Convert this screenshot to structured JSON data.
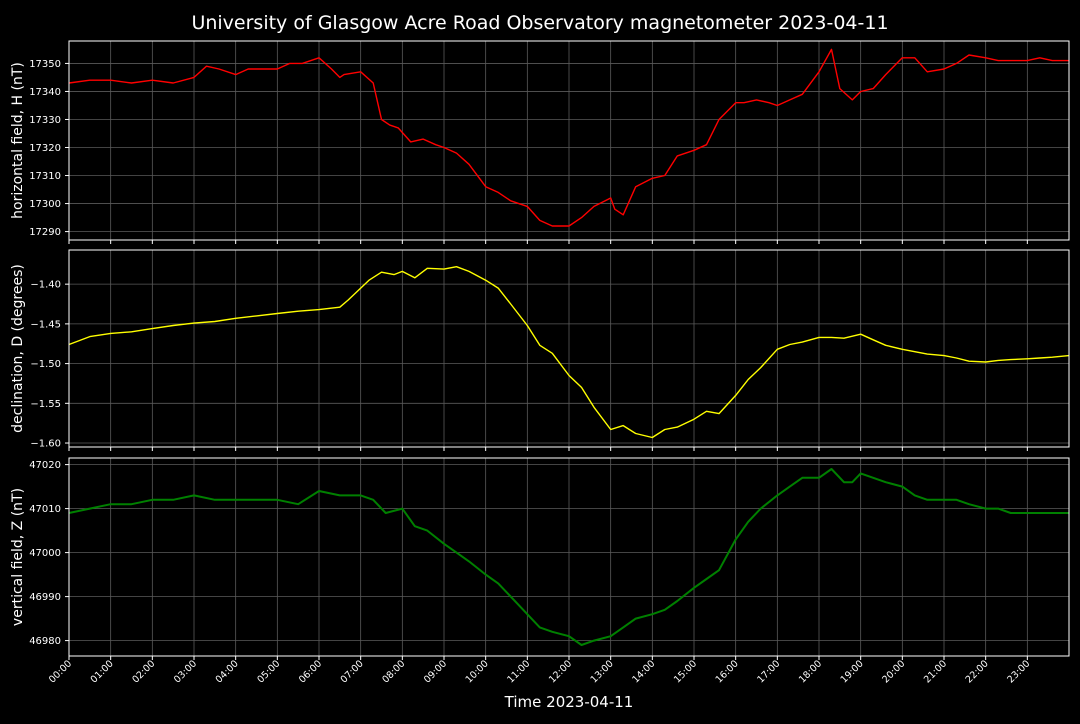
{
  "chart_data": {
    "type": "line",
    "title": "University of Glasgow Acre Road Observatory magnetometer 2023-04-11",
    "xlabel": "Time 2023-04-11",
    "x_unit": "hours",
    "x_tick_labels": [
      "00:00",
      "01:00",
      "02:00",
      "03:00",
      "04:00",
      "05:00",
      "06:00",
      "07:00",
      "08:00",
      "09:00",
      "10:00",
      "11:00",
      "12:00",
      "13:00",
      "14:00",
      "15:00",
      "16:00",
      "17:00",
      "18:00",
      "19:00",
      "20:00",
      "21:00",
      "22:00",
      "23:00"
    ],
    "xlim": [
      0,
      24
    ],
    "grid": true,
    "background": "#000000",
    "panels": [
      {
        "ylabel": "horizontal field, H (nT)",
        "color": "#ff0000",
        "ylim": [
          17287,
          17358
        ],
        "yticks": [
          17290,
          17300,
          17310,
          17320,
          17330,
          17340,
          17350
        ],
        "ytick_labels": [
          "17290",
          "17300",
          "17310",
          "17320",
          "17330",
          "17340",
          "17350"
        ],
        "x": [
          0,
          0.5,
          1,
          1.5,
          2,
          2.5,
          3,
          3.3,
          3.6,
          4,
          4.3,
          4.6,
          5,
          5.3,
          5.6,
          6,
          6.3,
          6.5,
          6.6,
          7,
          7.3,
          7.5,
          7.7,
          7.9,
          8.2,
          8.5,
          8.8,
          9,
          9.3,
          9.6,
          10,
          10.3,
          10.6,
          11,
          11.3,
          11.6,
          12,
          12.3,
          12.6,
          13,
          13.1,
          13.3,
          13.6,
          14,
          14.3,
          14.6,
          15,
          15.3,
          15.6,
          16,
          16.2,
          16.5,
          16.8,
          17,
          17.3,
          17.6,
          18,
          18.3,
          18.5,
          18.8,
          19,
          19.3,
          19.6,
          20,
          20.3,
          20.6,
          21,
          21.3,
          21.6,
          22,
          22.3,
          22.6,
          23,
          23.3,
          23.6,
          24
        ],
        "y": [
          17343,
          17344,
          17344,
          17343,
          17344,
          17343,
          17345,
          17349,
          17348,
          17346,
          17348,
          17348,
          17348,
          17350,
          17350,
          17352,
          17348,
          17345,
          17346,
          17347,
          17343,
          17330,
          17328,
          17327,
          17322,
          17323,
          17321,
          17320,
          17318,
          17314,
          17306,
          17304,
          17301,
          17299,
          17294,
          17292,
          17292,
          17295,
          17299,
          17302,
          17298,
          17296,
          17306,
          17309,
          17310,
          17317,
          17319,
          17321,
          17330,
          17336,
          17336,
          17337,
          17336,
          17335,
          17337,
          17339,
          17347,
          17355,
          17341,
          17337,
          17340,
          17341,
          17346,
          17352,
          17352,
          17347,
          17348,
          17350,
          17353,
          17352,
          17351,
          17351,
          17351,
          17352,
          17351,
          17351
        ]
      },
      {
        "ylabel": "declination, D (degrees)",
        "color": "#ffff00",
        "ylim": [
          -1.605,
          -1.357
        ],
        "yticks": [
          -1.6,
          -1.55,
          -1.5,
          -1.45,
          -1.4
        ],
        "ytick_labels": [
          "−1.60",
          "−1.55",
          "−1.50",
          "−1.45",
          "−1.40"
        ],
        "x": [
          0,
          0.5,
          1,
          1.5,
          2,
          2.5,
          3,
          3.5,
          4,
          4.5,
          5,
          5.5,
          6,
          6.5,
          6.7,
          7,
          7.2,
          7.5,
          7.8,
          8,
          8.3,
          8.6,
          9,
          9.3,
          9.6,
          10,
          10.3,
          10.6,
          11,
          11.3,
          11.6,
          12,
          12.3,
          12.6,
          13,
          13.3,
          13.6,
          14,
          14.3,
          14.6,
          15,
          15.3,
          15.6,
          16,
          16.3,
          16.6,
          17,
          17.3,
          17.6,
          18,
          18.3,
          18.6,
          19,
          19.3,
          19.6,
          20,
          20.3,
          20.6,
          21,
          21.3,
          21.6,
          22,
          22.3,
          22.6,
          23,
          23.3,
          23.6,
          24
        ],
        "y": [
          -1.476,
          -1.466,
          -1.462,
          -1.46,
          -1.456,
          -1.452,
          -1.449,
          -1.447,
          -1.443,
          -1.44,
          -1.437,
          -1.434,
          -1.432,
          -1.429,
          -1.42,
          -1.405,
          -1.395,
          -1.385,
          -1.388,
          -1.384,
          -1.392,
          -1.38,
          -1.381,
          -1.378,
          -1.384,
          -1.395,
          -1.405,
          -1.425,
          -1.452,
          -1.477,
          -1.487,
          -1.515,
          -1.53,
          -1.555,
          -1.583,
          -1.578,
          -1.588,
          -1.593,
          -1.583,
          -1.58,
          -1.57,
          -1.56,
          -1.563,
          -1.54,
          -1.52,
          -1.505,
          -1.482,
          -1.476,
          -1.473,
          -1.467,
          -1.467,
          -1.468,
          -1.463,
          -1.47,
          -1.477,
          -1.482,
          -1.485,
          -1.488,
          -1.49,
          -1.493,
          -1.497,
          -1.498,
          -1.496,
          -1.495,
          -1.494,
          -1.493,
          -1.492,
          -1.49
        ]
      },
      {
        "ylabel": "vertical field, Z (nT)",
        "color": "#008000",
        "ylim": [
          46976.5,
          47021.5
        ],
        "yticks": [
          46980,
          46990,
          47000,
          47010,
          47020
        ],
        "ytick_labels": [
          "46980",
          "46990",
          "47000",
          "47010",
          "47020"
        ],
        "x": [
          0,
          0.5,
          1,
          1.5,
          2,
          2.5,
          3,
          3.5,
          4,
          4.5,
          5,
          5.5,
          6,
          6.5,
          7,
          7.3,
          7.6,
          8,
          8.3,
          8.6,
          9,
          9.3,
          9.6,
          10,
          10.3,
          10.6,
          11,
          11.3,
          11.6,
          12,
          12.3,
          12.6,
          13,
          13.3,
          13.6,
          14,
          14.3,
          14.6,
          15,
          15.3,
          15.6,
          16,
          16.3,
          16.6,
          17,
          17.3,
          17.6,
          18,
          18.3,
          18.6,
          18.8,
          19,
          19.3,
          19.6,
          20,
          20.3,
          20.6,
          21,
          21.3,
          21.6,
          22,
          22.3,
          22.6,
          23,
          23.3,
          23.6,
          24
        ],
        "y": [
          47009,
          47010,
          47011,
          47011,
          47012,
          47012,
          47013,
          47012,
          47012,
          47012,
          47012,
          47011,
          47014,
          47013,
          47013,
          47012,
          47009,
          47010,
          47006,
          47005,
          47002,
          47000,
          46998,
          46995,
          46993,
          46990,
          46986,
          46983,
          46982,
          46981,
          46979,
          46980,
          46981,
          46983,
          46985,
          46986,
          46987,
          46989,
          46992,
          46994,
          46996,
          47003,
          47007,
          47010,
          47013,
          47015,
          47017,
          47017,
          47019,
          47016,
          47016,
          47018,
          47017,
          47016,
          47015,
          47013,
          47012,
          47012,
          47012,
          47011,
          47010,
          47010,
          47009,
          47009,
          47009,
          47009,
          47009
        ]
      }
    ]
  }
}
